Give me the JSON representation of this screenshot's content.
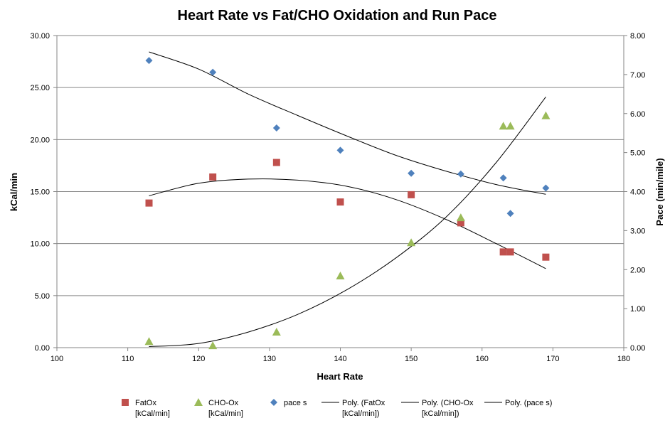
{
  "chart_data": {
    "type": "scatter",
    "title": "Heart Rate vs Fat/CHO Oxidation and Run Pace",
    "xlabel": "Heart Rate",
    "ylabel": "kCal/min",
    "y2label": "Pace (min/mile)",
    "xlim": [
      100,
      180
    ],
    "ylim": [
      0,
      30
    ],
    "y2lim": [
      0,
      8
    ],
    "x_ticks": [
      "100",
      "110",
      "120",
      "130",
      "140",
      "150",
      "160",
      "170",
      "180"
    ],
    "y_ticks": [
      "0.00",
      "5.00",
      "10.00",
      "15.00",
      "20.00",
      "25.00",
      "30.00"
    ],
    "y2_ticks": [
      "0.00",
      "1.00",
      "2.00",
      "3.00",
      "4.00",
      "5.00",
      "6.00",
      "7.00",
      "8.00"
    ],
    "grid": "horizontal",
    "legend_position": "bottom",
    "series": [
      {
        "name": "FatOx [kCal/min]",
        "axis": "left",
        "marker": "square",
        "color": "#C0504D",
        "x": [
          113,
          122,
          131,
          140,
          150,
          157,
          163,
          164,
          169
        ],
        "y": [
          13.9,
          16.4,
          17.8,
          14.0,
          14.7,
          12.0,
          9.2,
          9.2,
          8.7
        ]
      },
      {
        "name": "CHO-Ox [kCal/min]",
        "axis": "left",
        "marker": "triangle",
        "color": "#9BBB59",
        "x": [
          113,
          122,
          131,
          140,
          150,
          157,
          163,
          164,
          169
        ],
        "y": [
          0.6,
          0.2,
          1.5,
          6.9,
          10.1,
          12.5,
          21.3,
          21.3,
          22.3
        ]
      },
      {
        "name": "pace s",
        "axis": "right",
        "marker": "diamond",
        "color": "#4F81BD",
        "x": [
          113,
          122,
          131,
          140,
          150,
          157,
          163,
          164,
          169
        ],
        "y": [
          7.36,
          7.06,
          5.63,
          5.06,
          4.47,
          4.45,
          4.35,
          3.44,
          4.09
        ]
      }
    ],
    "trendlines": [
      {
        "name": "Poly. (FatOx [kCal/min])",
        "axis": "left",
        "x": [
          113,
          120,
          127,
          134,
          141,
          148,
          155,
          162,
          169
        ],
        "y": [
          14.6,
          15.8,
          16.2,
          16.1,
          15.5,
          14.2,
          12.3,
          10.0,
          7.6
        ]
      },
      {
        "name": "Poly. (CHO-Ox [kCal/min])",
        "axis": "left",
        "x": [
          113,
          120,
          127,
          134,
          141,
          148,
          155,
          162,
          169
        ],
        "y": [
          0.1,
          0.4,
          1.5,
          3.2,
          5.6,
          8.7,
          12.6,
          17.8,
          24.1
        ]
      },
      {
        "name": "Poly. (pace s)",
        "axis": "right",
        "x": [
          113,
          120,
          127,
          134,
          141,
          148,
          155,
          162,
          169
        ],
        "y": [
          7.58,
          7.14,
          6.5,
          5.95,
          5.42,
          4.92,
          4.52,
          4.18,
          3.93
        ]
      }
    ]
  },
  "legend": [
    {
      "id": "fatox",
      "line1": "FatOx",
      "line2": "[kCal/min]",
      "symbol": "square",
      "color": "#C0504D"
    },
    {
      "id": "chox",
      "line1": "CHO-Ox",
      "line2": "[kCal/min]",
      "symbol": "triangle",
      "color": "#9BBB59"
    },
    {
      "id": "pace",
      "line1": "pace s",
      "line2": "",
      "symbol": "diamond",
      "color": "#4F81BD"
    },
    {
      "id": "poly-fatox",
      "line1": "Poly. (FatOx",
      "line2": "[kCal/min])",
      "symbol": "line",
      "color": "#000000"
    },
    {
      "id": "poly-chox",
      "line1": "Poly. (CHO-Ox",
      "line2": "[kCal/min])",
      "symbol": "line",
      "color": "#000000"
    },
    {
      "id": "poly-pace",
      "line1": "Poly. (pace s)",
      "line2": "",
      "symbol": "line",
      "color": "#000000"
    }
  ]
}
